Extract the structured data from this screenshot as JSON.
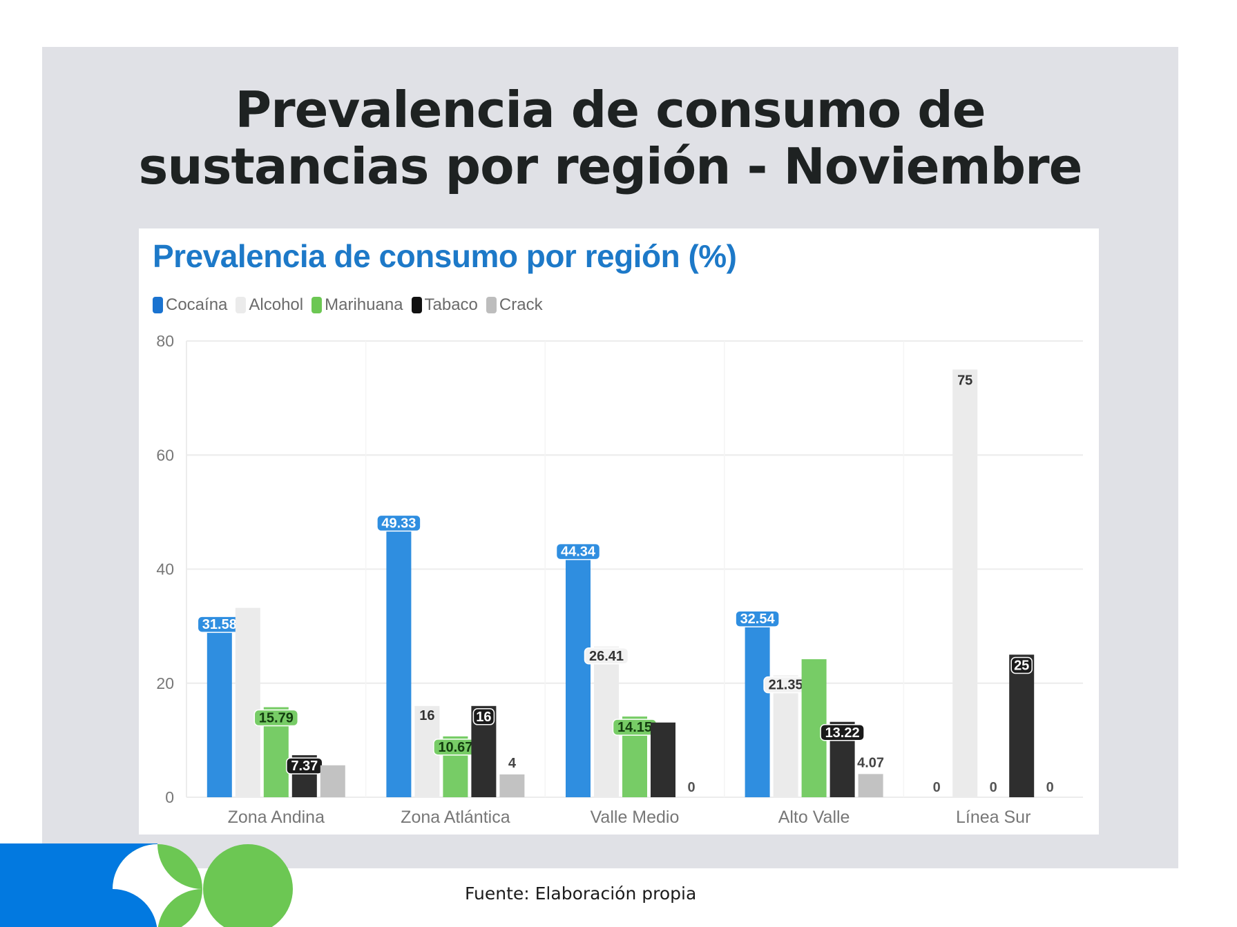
{
  "slide": {
    "title_line1": "Prevalencia de consumo de",
    "title_line2": "sustancias por región - Noviembre",
    "footer": "Fuente: Elaboración propia"
  },
  "colors": {
    "panel": "#e0e1e6",
    "cocaina": "#2f8ee0",
    "alcohol": "#ebebeb",
    "marihuana": "#77cc66",
    "tabaco": "#2e2e2e",
    "crack": "#c2c2c2",
    "title_blue": "#1d79c8",
    "deco_blue": "#0279e0",
    "deco_green": "#6cc753"
  },
  "chart_data": {
    "type": "bar",
    "title": "Prevalencia de consumo por región (%)",
    "xlabel": "",
    "ylabel": "",
    "ylim": [
      0,
      80
    ],
    "yticks": [
      0,
      20,
      40,
      60,
      80
    ],
    "grid": true,
    "legend_position": "top-left",
    "categories": [
      "Zona Andina",
      "Zona Atlántica",
      "Valle Medio",
      "Alto Valle",
      "Línea Sur"
    ],
    "series": [
      {
        "name": "Cocaína",
        "key": "cocaina",
        "values": [
          31.58,
          49.33,
          44.34,
          32.54,
          0
        ],
        "labels": [
          "31.58",
          "49.33",
          "44.34",
          "32.54",
          "0"
        ]
      },
      {
        "name": "Alcohol",
        "key": "alcohol",
        "values": [
          33.2,
          16,
          26.41,
          21.35,
          75
        ],
        "labels": [
          null,
          "16",
          "26.41",
          "21.35",
          "75"
        ]
      },
      {
        "name": "Marihuana",
        "key": "marihuana",
        "values": [
          15.79,
          10.67,
          14.15,
          24.2,
          0
        ],
        "labels": [
          "15.79",
          "10.67",
          "14.15",
          null,
          "0"
        ]
      },
      {
        "name": "Tabaco",
        "key": "tabaco",
        "values": [
          7.37,
          16,
          13.1,
          13.22,
          25
        ],
        "labels": [
          "7.37",
          "16",
          null,
          "13.22",
          "25"
        ]
      },
      {
        "name": "Crack",
        "key": "crack",
        "values": [
          5.6,
          4,
          0,
          4.07,
          0
        ],
        "labels": [
          null,
          "4",
          "0",
          "4.07",
          "0"
        ]
      }
    ]
  }
}
